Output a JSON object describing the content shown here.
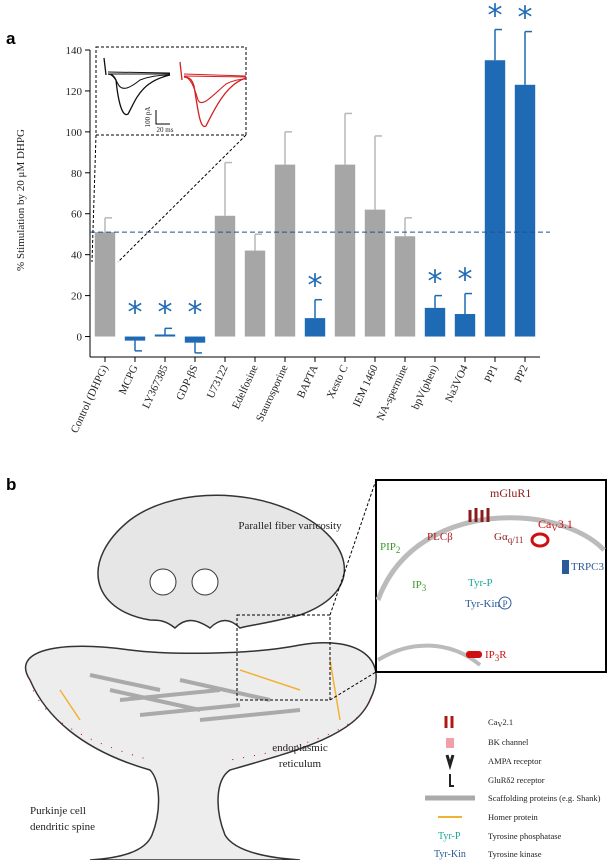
{
  "chart_data": {
    "type": "bar",
    "panel_label": "a",
    "y_label": "% Stimulation by 20 μM DHPG",
    "categories": [
      "Control (DHPG)",
      "MCPG",
      "LY367385",
      "GDP-βS",
      "U73122",
      "Edelfosine",
      "Staurosporine",
      "BAPTA",
      "Xesto C",
      "IEM 1460",
      "NA-spermine",
      "bpV(phen)",
      "Na3VO4",
      "PP1",
      "PP2"
    ],
    "values": [
      51,
      -2,
      1,
      -3,
      59,
      42,
      84,
      9,
      84,
      62,
      49,
      14,
      11,
      135,
      123
    ],
    "errors": [
      7,
      5,
      3,
      5,
      26,
      8,
      16,
      9,
      25,
      36,
      9,
      6,
      10,
      15,
      26
    ],
    "colors": [
      "#a6a6a6",
      "#1f6ab4",
      "#1f6ab4",
      "#1f6ab4",
      "#a6a6a6",
      "#a6a6a6",
      "#a6a6a6",
      "#1f6ab4",
      "#a6a6a6",
      "#a6a6a6",
      "#a6a6a6",
      "#1f6ab4",
      "#1f6ab4",
      "#1f6ab4",
      "#1f6ab4"
    ],
    "significant": [
      false,
      true,
      true,
      true,
      false,
      false,
      false,
      true,
      false,
      false,
      false,
      true,
      true,
      true,
      true
    ],
    "significance_marker": "*",
    "reference_line": 51,
    "reference_color": "#1f4f8f",
    "ylim": [
      -10,
      140
    ],
    "yticks": [
      0,
      20,
      40,
      60,
      80,
      100,
      120,
      140
    ],
    "inset": {
      "scale_y": "100 pA",
      "scale_x": "20 ms"
    }
  },
  "diagram": {
    "panel_label": "b",
    "presynaptic": "Parallel fiber varicosity",
    "er": [
      "endoplasmic",
      "reticulum"
    ],
    "spine": [
      "Purkinje cell",
      "dendritic spine"
    ],
    "inset": {
      "mglur": "mGluR1",
      "plc": "PLCβ",
      "pip": {
        "text": "PIP",
        "sub": "2"
      },
      "gq": {
        "text": "Gα",
        "sub": "q/11"
      },
      "cav31": {
        "text": "Ca",
        "sub": "V",
        "rest": "3.1"
      },
      "trpc3": "TRPC3",
      "ip3": {
        "text": "IP",
        "sub": "3"
      },
      "tyrp": "Tyr-P",
      "tyrkin": "Tyr-Kin",
      "p": "P",
      "ip3r": {
        "text": "IP",
        "sub": "3",
        "rest": "R"
      }
    },
    "legend": {
      "cav21": {
        "text": "Ca",
        "sub": "V",
        "rest": "2.1"
      },
      "bk": "BK channel",
      "ampa": "AMPA receptor",
      "glur": "GluRδ2 receptor",
      "scaffold": "Scaffolding proteins (e.g. Shank)",
      "homer": "Homer protein",
      "tyrp": "Tyr-P",
      "tyrp_desc": "Tyrosine phosphatase",
      "tyrkin": "Tyr-Kin",
      "tyrkin_desc": "Tyrosine kinase"
    }
  }
}
